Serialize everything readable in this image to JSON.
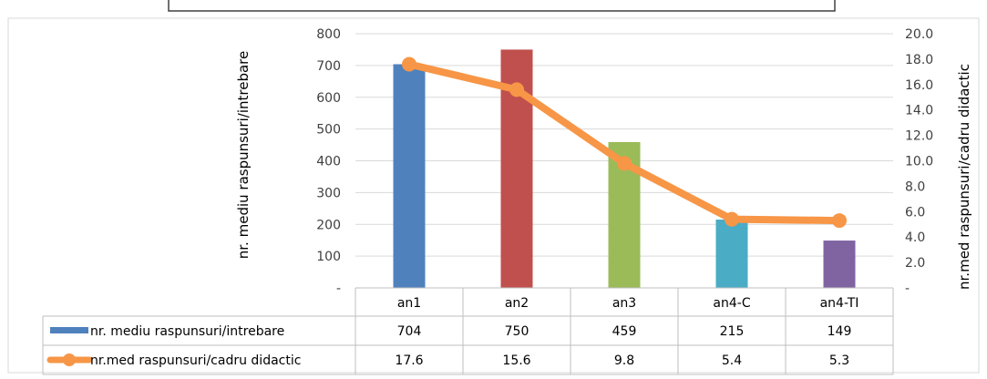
{
  "chart_data": {
    "type": "bar",
    "categories": [
      "an1",
      "an2",
      "an3",
      "an4-C",
      "an4-TI"
    ],
    "series": [
      {
        "name": "nr. mediu raspunsuri/intrebare",
        "type": "bar",
        "axis": "left",
        "values": [
          704,
          750,
          459,
          215,
          149
        ],
        "display": [
          "704",
          "750",
          "459",
          "215",
          "149"
        ],
        "colors": [
          "#4f81bd",
          "#c0504d",
          "#9bbb59",
          "#4bacc6",
          "#8064a2"
        ]
      },
      {
        "name": "nr.med raspunsuri/cadru didactic",
        "type": "line",
        "axis": "right",
        "values": [
          17.6,
          15.6,
          9.8,
          5.4,
          5.3
        ],
        "display": [
          "17.6",
          "15.6",
          "9.8",
          "5.4",
          "5.3"
        ],
        "color": "#f79646"
      }
    ],
    "ylabel": "nr. mediu raspunsuri/intrebare",
    "y2label": "nr.med raspunsuri/cadru didactic",
    "ylim": [
      0,
      800
    ],
    "y2lim": [
      0,
      20
    ],
    "yticks": [
      "-",
      "100",
      "200",
      "300",
      "400",
      "500",
      "600",
      "700",
      "800"
    ],
    "y2ticks": [
      "-",
      "2.0",
      "4.0",
      "6.0",
      "8.0",
      "10.0",
      "12.0",
      "14.0",
      "16.0",
      "18.0",
      "20.0"
    ],
    "grid": true,
    "legend": "data-table"
  }
}
